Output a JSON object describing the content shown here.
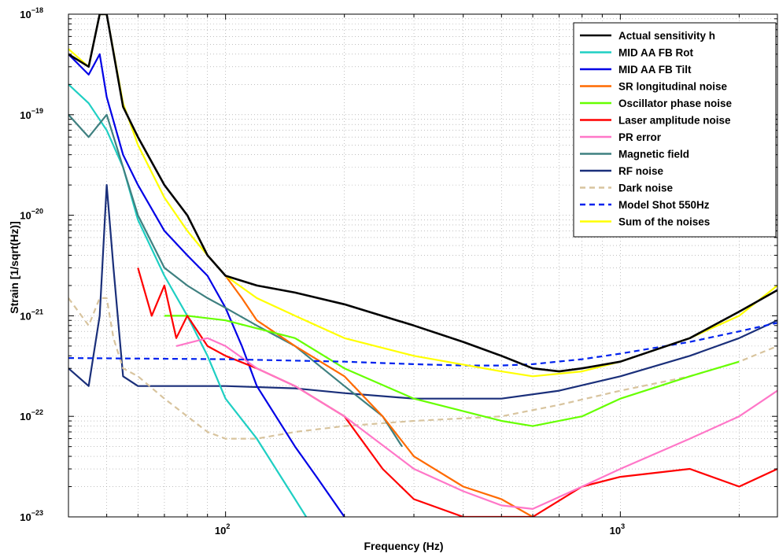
{
  "chart_data": {
    "type": "line",
    "title": "",
    "xlabel": "Frequency (Hz)",
    "ylabel": "Strain [1/sqrt(Hz)]",
    "xscale": "log",
    "yscale": "log",
    "xlim": [
      40,
      2500
    ],
    "ylim": [
      1e-23,
      1e-18
    ],
    "grid": true,
    "legend_position": "top-right",
    "x_tick_labels": [
      {
        "value": 100,
        "base": "10",
        "exp": "2"
      },
      {
        "value": 1000,
        "base": "10",
        "exp": "3"
      }
    ],
    "y_tick_labels": [
      {
        "value": 1e-18,
        "base": "10",
        "exp": "−18"
      },
      {
        "value": 1e-19,
        "base": "10",
        "exp": "−19"
      },
      {
        "value": 1e-20,
        "base": "10",
        "exp": "−20"
      },
      {
        "value": 1e-21,
        "base": "10",
        "exp": "−21"
      },
      {
        "value": 1e-22,
        "base": "10",
        "exp": "−22"
      },
      {
        "value": 1e-23,
        "base": "10",
        "exp": "−23"
      }
    ],
    "series": [
      {
        "name": "Actual sensitivity h",
        "color": "#000000",
        "dash": false,
        "x": [
          40,
          45,
          48,
          50,
          55,
          60,
          70,
          80,
          90,
          100,
          120,
          150,
          200,
          300,
          400,
          500,
          600,
          700,
          800,
          1000,
          1500,
          2000,
          2500
        ],
        "y": [
          4e-19,
          3e-19,
          1e-18,
          1e-18,
          1.2e-19,
          6e-20,
          2e-20,
          1e-20,
          4e-21,
          2.5e-21,
          2e-21,
          1.7e-21,
          1.3e-21,
          8e-22,
          5.5e-22,
          4e-22,
          3e-22,
          2.8e-22,
          3e-22,
          3.5e-22,
          6e-22,
          1.1e-21,
          1.8e-21
        ]
      },
      {
        "name": "MID AA FB Rot",
        "color": "#1fcfc3",
        "dash": false,
        "x": [
          40,
          45,
          50,
          55,
          60,
          70,
          80,
          90,
          100,
          120,
          150,
          160
        ],
        "y": [
          2e-19,
          1.3e-19,
          7e-20,
          3e-20,
          9e-21,
          2.5e-21,
          1e-21,
          4e-22,
          1.5e-22,
          6e-23,
          1.5e-23,
          1e-23
        ]
      },
      {
        "name": "MID AA FB Tilt",
        "color": "#0000e6",
        "dash": false,
        "x": [
          40,
          45,
          48,
          50,
          55,
          60,
          70,
          80,
          90,
          100,
          110,
          120,
          150,
          170,
          200
        ],
        "y": [
          4e-19,
          2.5e-19,
          4e-19,
          1.5e-19,
          4e-20,
          2e-20,
          7e-21,
          4e-21,
          2.5e-21,
          1.2e-21,
          5e-22,
          2e-22,
          5e-23,
          2.5e-23,
          1e-23
        ]
      },
      {
        "name": "SR longitudinal noise",
        "color": "#ff6a00",
        "dash": false,
        "x": [
          90,
          100,
          110,
          120,
          150,
          200,
          250,
          300,
          400,
          500,
          600
        ],
        "y": [
          4e-21,
          2.5e-21,
          1.5e-21,
          9e-22,
          5e-22,
          2.5e-22,
          1e-22,
          4e-23,
          2e-23,
          1.5e-23,
          1e-23
        ]
      },
      {
        "name": "Oscillator phase noise",
        "color": "#66ff00",
        "dash": false,
        "x": [
          70,
          80,
          100,
          150,
          200,
          300,
          500,
          600,
          800,
          1000,
          1500,
          2000
        ],
        "y": [
          1e-21,
          1e-21,
          9e-22,
          6e-22,
          3e-22,
          1.5e-22,
          9e-23,
          8e-23,
          1e-22,
          1.5e-22,
          2.5e-22,
          3.5e-22
        ]
      },
      {
        "name": "Laser amplitude noise",
        "color": "#ff0000",
        "dash": false,
        "x": [
          60,
          65,
          70,
          75,
          80,
          90,
          100,
          120,
          150,
          200,
          250,
          300,
          400,
          600,
          800,
          1000,
          1500,
          2000,
          2500
        ],
        "y": [
          3e-21,
          1e-21,
          2e-21,
          6e-22,
          1e-21,
          5e-22,
          4e-22,
          3e-22,
          2e-22,
          1e-22,
          3e-23,
          1.5e-23,
          1e-23,
          1e-23,
          2e-23,
          2.5e-23,
          3e-23,
          2e-23,
          3e-23
        ]
      },
      {
        "name": "PR error",
        "color": "#ff77c8",
        "dash": false,
        "x": [
          75,
          90,
          100,
          120,
          150,
          200,
          300,
          400,
          500,
          600,
          800,
          1000,
          1500,
          2000,
          2500
        ],
        "y": [
          5e-22,
          6e-22,
          5e-22,
          3e-22,
          2e-22,
          1e-22,
          3e-23,
          1.8e-23,
          1.3e-23,
          1.2e-23,
          2e-23,
          3e-23,
          6e-23,
          1e-22,
          1.8e-22
        ]
      },
      {
        "name": "Magnetic field",
        "color": "#3f8080",
        "dash": false,
        "x": [
          40,
          45,
          50,
          55,
          60,
          70,
          80,
          90,
          100,
          120,
          150,
          200,
          250,
          280
        ],
        "y": [
          1e-19,
          6e-20,
          1e-19,
          3e-20,
          1e-20,
          3e-21,
          2e-21,
          1.5e-21,
          1.2e-21,
          8e-22,
          5e-22,
          2e-22,
          1e-22,
          5e-23
        ]
      },
      {
        "name": "RF noise",
        "color": "#1a2f7a",
        "dash": false,
        "x": [
          40,
          45,
          48,
          50,
          52,
          55,
          60,
          70,
          80,
          100,
          150,
          200,
          300,
          500,
          700,
          1000,
          1500,
          2000,
          2500
        ],
        "y": [
          3e-22,
          2e-22,
          1e-21,
          2e-20,
          3e-21,
          2.5e-22,
          2e-22,
          2e-22,
          2e-22,
          2e-22,
          1.9e-22,
          1.7e-22,
          1.5e-22,
          1.5e-22,
          1.8e-22,
          2.5e-22,
          4e-22,
          6e-22,
          9e-22
        ]
      },
      {
        "name": "Dark noise",
        "color": "#d8c49e",
        "dash": true,
        "x": [
          40,
          45,
          48,
          50,
          52,
          55,
          60,
          70,
          80,
          90,
          100,
          120,
          150,
          200,
          300,
          500,
          700,
          1000,
          1500,
          2000,
          2500
        ],
        "y": [
          1.5e-21,
          8e-22,
          1.5e-21,
          1.5e-21,
          6e-22,
          3e-22,
          2.5e-22,
          1.5e-22,
          1e-22,
          7e-23,
          6e-23,
          6e-23,
          7e-23,
          8e-23,
          9e-23,
          1e-22,
          1.3e-22,
          1.8e-22,
          2.5e-22,
          3.5e-22,
          5e-22
        ]
      },
      {
        "name": "Model Shot 550Hz",
        "color": "#0022ee",
        "dash": true,
        "x": [
          40,
          100,
          200,
          300,
          400,
          500,
          600,
          800,
          1000,
          1500,
          2000,
          2500
        ],
        "y": [
          3.8e-22,
          3.7e-22,
          3.5e-22,
          3.3e-22,
          3.2e-22,
          3.2e-22,
          3.3e-22,
          3.7e-22,
          4.2e-22,
          5.5e-22,
          7e-22,
          8.5e-22
        ]
      },
      {
        "name": "Sum of the noises",
        "color": "#ffff00",
        "dash": false,
        "x": [
          40,
          45,
          48,
          50,
          55,
          60,
          70,
          80,
          90,
          100,
          120,
          150,
          200,
          300,
          500,
          600,
          800,
          1000,
          1500,
          2000,
          2500
        ],
        "y": [
          4.5e-19,
          3e-19,
          1e-18,
          1e-18,
          1.3e-19,
          5e-20,
          1.5e-20,
          7e-21,
          4e-21,
          2.5e-21,
          1.5e-21,
          1e-21,
          6e-22,
          4e-22,
          2.8e-22,
          2.5e-22,
          2.8e-22,
          3.5e-22,
          6e-22,
          1e-21,
          2e-21
        ]
      }
    ]
  }
}
